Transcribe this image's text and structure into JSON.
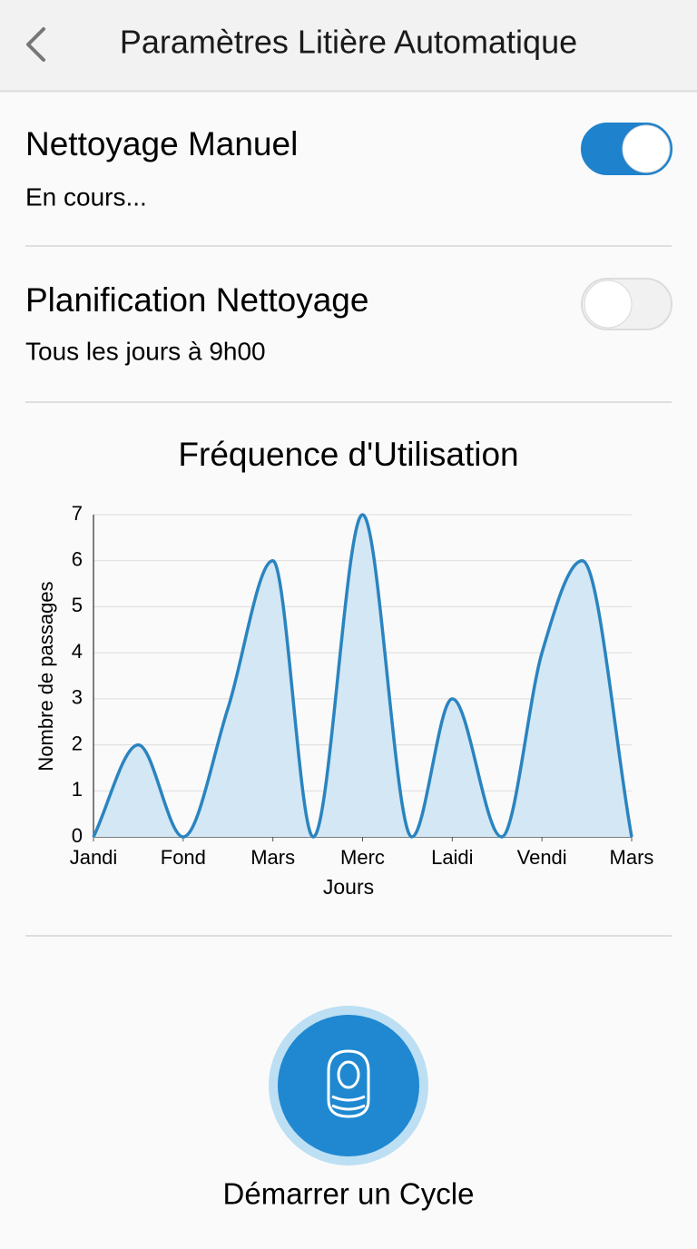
{
  "header": {
    "title": "Paramètres Litière Automatique"
  },
  "settings": [
    {
      "title": "Nettoyage Manuel",
      "subtitle": "En cours...",
      "enabled": true
    },
    {
      "title": "Planification Nettoyage",
      "subtitle": "Tous les jours à 9h00",
      "enabled": false
    }
  ],
  "chart_data": {
    "type": "area",
    "title": "Fréquence d'Utilisation",
    "x_label": "Jours",
    "y_label": "Nombre de passages",
    "x": [
      0,
      0.5,
      1,
      1.5,
      2,
      2.45,
      3,
      3.55,
      4,
      4.55,
      5,
      5.45,
      6
    ],
    "values": [
      0,
      2,
      0,
      2.8,
      6,
      0,
      7,
      0,
      3,
      0,
      4,
      6,
      0
    ],
    "xlim": [
      0,
      6
    ],
    "xticks": [
      {
        "value": 0,
        "label": "Jandi"
      },
      {
        "value": 1,
        "label": "Fond"
      },
      {
        "value": 2,
        "label": "Mars"
      },
      {
        "value": 3,
        "label": "Merc"
      },
      {
        "value": 4,
        "label": "Laidi"
      },
      {
        "value": 5,
        "label": "Vendi"
      },
      {
        "value": 6,
        "label": "Mars"
      }
    ],
    "ylim": [
      0,
      7
    ],
    "yticks": [
      0,
      1,
      2,
      3,
      4,
      5,
      6,
      7
    ],
    "grid": true,
    "color": "#2a84bf",
    "fill_color": "#d3e7f5"
  },
  "action": {
    "label": "Démarrer un Cycle"
  }
}
